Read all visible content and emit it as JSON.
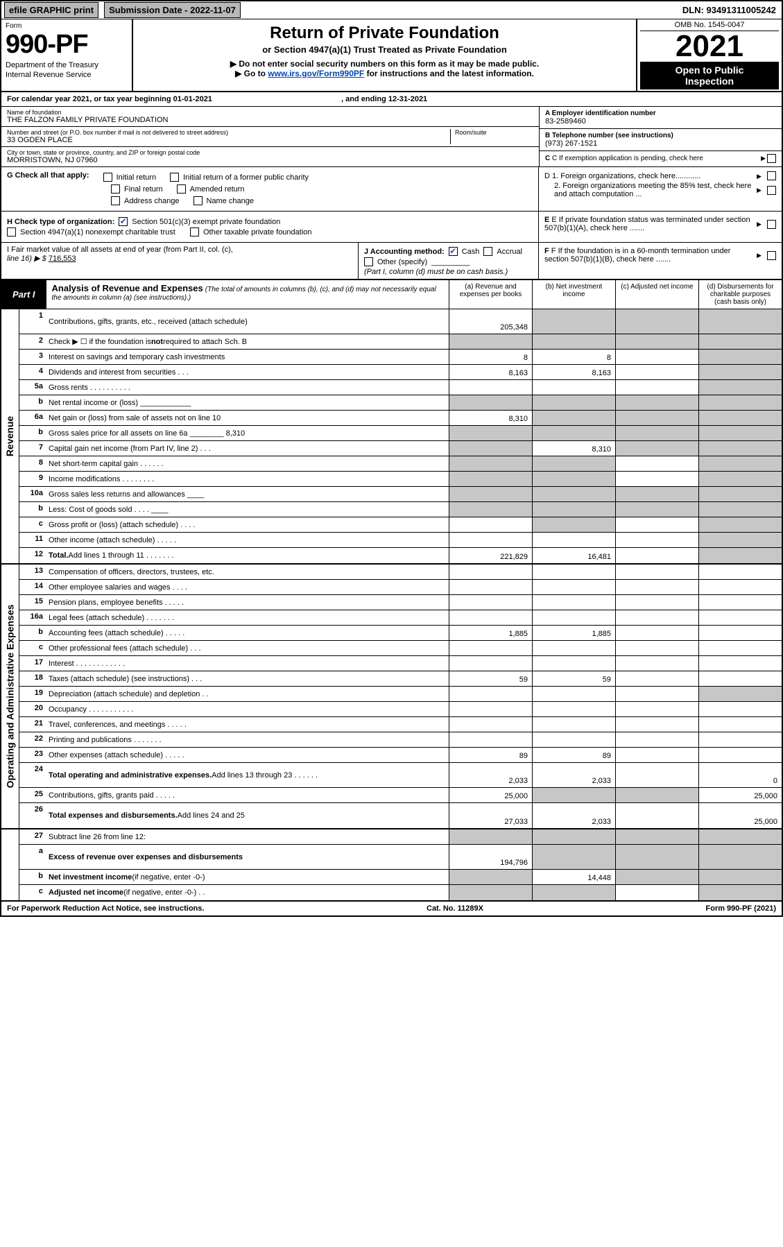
{
  "topbar": {
    "efile": "efile GRAPHIC print",
    "submission_label": "Submission Date - 2022-11-07",
    "dln": "DLN: 93491311005242"
  },
  "header": {
    "form_label": "Form",
    "form_number": "990-PF",
    "dept1": "Department of the Treasury",
    "dept2": "Internal Revenue Service",
    "title": "Return of Private Foundation",
    "subtitle": "or Section 4947(a)(1) Trust Treated as Private Foundation",
    "line1": "▶ Do not enter social security numbers on this form as it may be made public.",
    "line2_pre": "▶ Go to ",
    "line2_link": "www.irs.gov/Form990PF",
    "line2_post": " for instructions and the latest information.",
    "omb": "OMB No. 1545-0047",
    "year": "2021",
    "inspect1": "Open to Public",
    "inspect2": "Inspection"
  },
  "calyear": {
    "text_pre": "For calendar year 2021, or tax year beginning ",
    "begin": "01-01-2021",
    "mid": " , and ending ",
    "end": "12-31-2021"
  },
  "info": {
    "name_label": "Name of foundation",
    "name": "THE FALZON FAMILY PRIVATE FOUNDATION",
    "addr_label": "Number and street (or P.O. box number if mail is not delivered to street address)",
    "addr": "33 OGDEN PLACE",
    "room_label": "Room/suite",
    "city_label": "City or town, state or province, country, and ZIP or foreign postal code",
    "city": "MORRISTOWN, NJ  07960",
    "a_label": "A Employer identification number",
    "a_val": "83-2589460",
    "b_label": "B Telephone number (see instructions)",
    "b_val": "(973) 267-1521",
    "c_label": "C If exemption application is pending, check here"
  },
  "g": {
    "label": "G Check all that apply:",
    "initial": "Initial return",
    "initial_former": "Initial return of a former public charity",
    "final": "Final return",
    "amended": "Amended return",
    "address": "Address change",
    "name": "Name change"
  },
  "d": {
    "d1": "D 1. Foreign organizations, check here............",
    "d2": "2. Foreign organizations meeting the 85% test, check here and attach computation ..."
  },
  "h": {
    "label": "H Check type of organization:",
    "opt1": "Section 501(c)(3) exempt private foundation",
    "opt2": "Section 4947(a)(1) nonexempt charitable trust",
    "opt3": "Other taxable private foundation"
  },
  "e": "E If private foundation status was terminated under section 507(b)(1)(A), check here .......",
  "i": {
    "label": "I Fair market value of all assets at end of year (from Part II, col. (c),",
    "line": "line 16) ▶ $",
    "value": "716,553"
  },
  "j": {
    "label": "J Accounting method:",
    "cash": "Cash",
    "accrual": "Accrual",
    "other": "Other (specify)",
    "note": "(Part I, column (d) must be on cash basis.)"
  },
  "f": "F If the foundation is in a 60-month termination under section 507(b)(1)(B), check here .......",
  "part1": {
    "badge": "Part I",
    "title": "Analysis of Revenue and Expenses",
    "note": "(The total of amounts in columns (b), (c), and (d) may not necessarily equal the amounts in column (a) (see instructions).)",
    "col_a": "(a) Revenue and expenses per books",
    "col_b": "(b) Net investment income",
    "col_c": "(c) Adjusted net income",
    "col_d": "(d) Disbursements for charitable purposes (cash basis only)"
  },
  "revenue_label": "Revenue",
  "expenses_label": "Operating and Administrative Expenses",
  "rows_revenue": [
    {
      "n": "1",
      "l": "Contributions, gifts, grants, etc., received (attach schedule)",
      "a": "205,348",
      "b": "",
      "c": "",
      "d": "",
      "tall": true,
      "shade_b": true,
      "shade_c": true,
      "shade_d": true
    },
    {
      "n": "2",
      "l": "Check ▶ ☐ if the foundation is <b>not</b> required to attach Sch. B",
      "a": "",
      "b": "",
      "c": "",
      "d": "",
      "shade_a": true,
      "shade_b": true,
      "shade_c": true,
      "shade_d": true
    },
    {
      "n": "3",
      "l": "Interest on savings and temporary cash investments",
      "a": "8",
      "b": "8",
      "c": "",
      "d": "",
      "shade_d": true
    },
    {
      "n": "4",
      "l": "Dividends and interest from securities  .  .  .",
      "a": "8,163",
      "b": "8,163",
      "c": "",
      "d": "",
      "shade_d": true
    },
    {
      "n": "5a",
      "l": "Gross rents  .  .  .  .  .  .  .  .  .  .",
      "a": "",
      "b": "",
      "c": "",
      "d": "",
      "shade_d": true
    },
    {
      "n": "b",
      "l": "Net rental income or (loss)  ____________",
      "a": "",
      "b": "",
      "c": "",
      "d": "",
      "shade_a": true,
      "shade_b": true,
      "shade_c": true,
      "shade_d": true
    },
    {
      "n": "6a",
      "l": "Net gain or (loss) from sale of assets not on line 10",
      "a": "8,310",
      "b": "",
      "c": "",
      "d": "",
      "shade_b": true,
      "shade_c": true,
      "shade_d": true
    },
    {
      "n": "b",
      "l": "Gross sales price for all assets on line 6a ________ 8,310",
      "a": "",
      "b": "",
      "c": "",
      "d": "",
      "shade_a": true,
      "shade_b": true,
      "shade_c": true,
      "shade_d": true
    },
    {
      "n": "7",
      "l": "Capital gain net income (from Part IV, line 2)  .  .  .",
      "a": "",
      "b": "8,310",
      "c": "",
      "d": "",
      "shade_a": true,
      "shade_c": true,
      "shade_d": true
    },
    {
      "n": "8",
      "l": "Net short-term capital gain  .  .  .  .  .  .",
      "a": "",
      "b": "",
      "c": "",
      "d": "",
      "shade_a": true,
      "shade_b": true,
      "shade_d": true
    },
    {
      "n": "9",
      "l": "Income modifications  .  .  .  .  .  .  .  .",
      "a": "",
      "b": "",
      "c": "",
      "d": "",
      "shade_a": true,
      "shade_b": true,
      "shade_d": true
    },
    {
      "n": "10a",
      "l": "Gross sales less returns and allowances  ____",
      "a": "",
      "b": "",
      "c": "",
      "d": "",
      "shade_a": true,
      "shade_b": true,
      "shade_c": true,
      "shade_d": true
    },
    {
      "n": "b",
      "l": "Less: Cost of goods sold  .  .  .  .  ____",
      "a": "",
      "b": "",
      "c": "",
      "d": "",
      "shade_a": true,
      "shade_b": true,
      "shade_c": true,
      "shade_d": true
    },
    {
      "n": "c",
      "l": "Gross profit or (loss) (attach schedule)  .  .  .  .",
      "a": "",
      "b": "",
      "c": "",
      "d": "",
      "shade_b": true,
      "shade_d": true
    },
    {
      "n": "11",
      "l": "Other income (attach schedule)  .  .  .  .  .",
      "a": "",
      "b": "",
      "c": "",
      "d": "",
      "shade_d": true
    },
    {
      "n": "12",
      "l": "<b>Total.</b> Add lines 1 through 11  .  .  .  .  .  .  .",
      "a": "221,829",
      "b": "16,481",
      "c": "",
      "d": "",
      "shade_d": true
    }
  ],
  "rows_expenses": [
    {
      "n": "13",
      "l": "Compensation of officers, directors, trustees, etc.",
      "a": "",
      "b": "",
      "c": "",
      "d": ""
    },
    {
      "n": "14",
      "l": "Other employee salaries and wages  .  .  .  .",
      "a": "",
      "b": "",
      "c": "",
      "d": ""
    },
    {
      "n": "15",
      "l": "Pension plans, employee benefits  .  .  .  .  .",
      "a": "",
      "b": "",
      "c": "",
      "d": ""
    },
    {
      "n": "16a",
      "l": "Legal fees (attach schedule)  .  .  .  .  .  .  .",
      "a": "",
      "b": "",
      "c": "",
      "d": ""
    },
    {
      "n": "b",
      "l": "Accounting fees (attach schedule)  .  .  .  .  .",
      "a": "1,885",
      "b": "1,885",
      "c": "",
      "d": ""
    },
    {
      "n": "c",
      "l": "Other professional fees (attach schedule)  .  .  .",
      "a": "",
      "b": "",
      "c": "",
      "d": ""
    },
    {
      "n": "17",
      "l": "Interest  .  .  .  .  .  .  .  .  .  .  .  .",
      "a": "",
      "b": "",
      "c": "",
      "d": ""
    },
    {
      "n": "18",
      "l": "Taxes (attach schedule) (see instructions)  .  .  .",
      "a": "59",
      "b": "59",
      "c": "",
      "d": ""
    },
    {
      "n": "19",
      "l": "Depreciation (attach schedule) and depletion  .  .",
      "a": "",
      "b": "",
      "c": "",
      "d": "",
      "shade_d": true
    },
    {
      "n": "20",
      "l": "Occupancy  .  .  .  .  .  .  .  .  .  .  .",
      "a": "",
      "b": "",
      "c": "",
      "d": ""
    },
    {
      "n": "21",
      "l": "Travel, conferences, and meetings  .  .  .  .  .",
      "a": "",
      "b": "",
      "c": "",
      "d": ""
    },
    {
      "n": "22",
      "l": "Printing and publications  .  .  .  .  .  .  .",
      "a": "",
      "b": "",
      "c": "",
      "d": ""
    },
    {
      "n": "23",
      "l": "Other expenses (attach schedule)  .  .  .  .  .",
      "a": "89",
      "b": "89",
      "c": "",
      "d": ""
    },
    {
      "n": "24",
      "l": "<b>Total operating and administrative expenses.</b> Add lines 13 through 23  .  .  .  .  .  .",
      "a": "2,033",
      "b": "2,033",
      "c": "",
      "d": "0",
      "tall": true
    },
    {
      "n": "25",
      "l": "Contributions, gifts, grants paid  .  .  .  .  .",
      "a": "25,000",
      "b": "",
      "c": "",
      "d": "25,000",
      "shade_b": true,
      "shade_c": true
    },
    {
      "n": "26",
      "l": "<b>Total expenses and disbursements.</b> Add lines 24 and 25",
      "a": "27,033",
      "b": "2,033",
      "c": "",
      "d": "25,000",
      "tall": true
    }
  ],
  "rows_bottom": [
    {
      "n": "27",
      "l": "Subtract line 26 from line 12:",
      "a": "",
      "b": "",
      "c": "",
      "d": "",
      "shade_a": true,
      "shade_b": true,
      "shade_c": true,
      "shade_d": true
    },
    {
      "n": "a",
      "l": "<b>Excess of revenue over expenses and disbursements</b>",
      "a": "194,796",
      "b": "",
      "c": "",
      "d": "",
      "shade_b": true,
      "shade_c": true,
      "shade_d": true,
      "tall": true
    },
    {
      "n": "b",
      "l": "<b>Net investment income</b> (if negative, enter -0-)",
      "a": "",
      "b": "14,448",
      "c": "",
      "d": "",
      "shade_a": true,
      "shade_c": true,
      "shade_d": true
    },
    {
      "n": "c",
      "l": "<b>Adjusted net income</b> (if negative, enter -0-)  .  .",
      "a": "",
      "b": "",
      "c": "",
      "d": "",
      "shade_a": true,
      "shade_b": true,
      "shade_d": true
    }
  ],
  "foot": {
    "left": "For Paperwork Reduction Act Notice, see instructions.",
    "mid": "Cat. No. 11289X",
    "right": "Form 990-PF (2021)"
  },
  "colors": {
    "shade": "#c7c7c7",
    "link": "#0047b3",
    "check": "#2a4db8"
  }
}
